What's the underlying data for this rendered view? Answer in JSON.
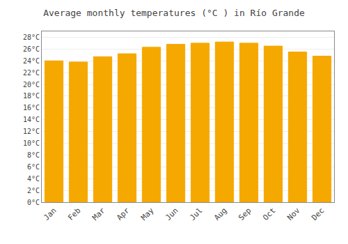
{
  "chart_data": {
    "type": "bar",
    "title": "Average monthly temperatures (°C ) in Río Grande",
    "categories": [
      "Jan",
      "Feb",
      "Mar",
      "Apr",
      "May",
      "Jun",
      "Jul",
      "Aug",
      "Sep",
      "Oct",
      "Nov",
      "Dec"
    ],
    "values": [
      24.0,
      23.8,
      24.7,
      25.2,
      26.3,
      26.8,
      27.0,
      27.2,
      27.0,
      26.5,
      25.5,
      24.8
    ],
    "color": "#F5A800",
    "ylim": [
      0,
      29
    ],
    "yticks": [
      {
        "value": 0,
        "label": "0°C"
      },
      {
        "value": 2,
        "label": "2°C"
      },
      {
        "value": 4,
        "label": "4°C"
      },
      {
        "value": 6,
        "label": "6°C"
      },
      {
        "value": 8,
        "label": "8°C"
      },
      {
        "value": 10,
        "label": "10°C"
      },
      {
        "value": 12,
        "label": "12°C"
      },
      {
        "value": 14,
        "label": "14°C"
      },
      {
        "value": 16,
        "label": "16°C"
      },
      {
        "value": 18,
        "label": "18°C"
      },
      {
        "value": 20,
        "label": "20°C"
      },
      {
        "value": 22,
        "label": "22°C"
      },
      {
        "value": 24,
        "label": "24°C"
      },
      {
        "value": 26,
        "label": "26°C"
      },
      {
        "value": 28,
        "label": "28°C"
      }
    ],
    "grid": true
  }
}
